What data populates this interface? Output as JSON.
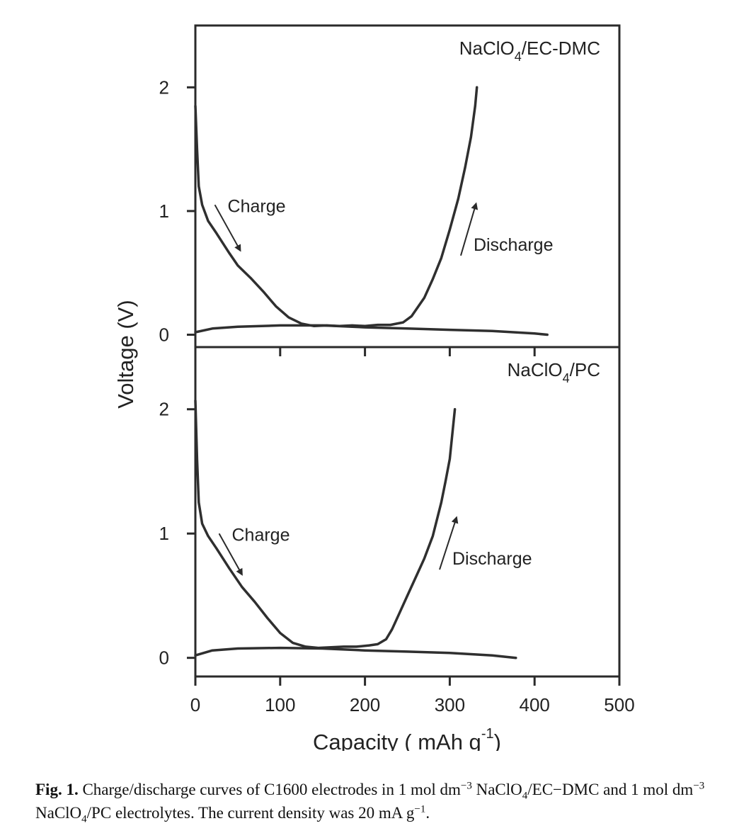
{
  "chart_data": {
    "type": "line",
    "xlabel": "Capacity ( mAh g",
    "xlabel_sup": "-1",
    "xlabel_end": ")",
    "ylabel": "Voltage (V)",
    "xlim": [
      0,
      500
    ],
    "xticks": [
      0,
      100,
      200,
      300,
      400,
      500
    ],
    "panels": [
      {
        "label_main": "NaClO",
        "label_sub": "4",
        "label_rest": "/EC-DMC",
        "ylim": [
          -0.1,
          2.5
        ],
        "yticks": [
          0,
          1,
          2
        ],
        "annotations": [
          {
            "text": "Charge",
            "x": 38,
            "y": 0.99
          },
          {
            "text": "Discharge",
            "x": 328,
            "y": 0.68
          }
        ],
        "arrows": [
          {
            "from": [
              23,
              1.05
            ],
            "to": [
              53,
              0.68
            ]
          },
          {
            "from": [
              313,
              0.64
            ],
            "to": [
              331,
              1.06
            ]
          }
        ],
        "series": [
          {
            "x": [
              0,
              2,
              4,
              8,
              15,
              25,
              40,
              50,
              65,
              80,
              95,
              110,
              125,
              140,
              155,
              170,
              185,
              200,
              215,
              230,
              245,
              255,
              262,
              270,
              280,
              290,
              300,
              310,
              318,
              325,
              330,
              332
            ],
            "y": [
              1.85,
              1.5,
              1.2,
              1.05,
              0.92,
              0.82,
              0.66,
              0.56,
              0.46,
              0.35,
              0.23,
              0.14,
              0.09,
              0.07,
              0.075,
              0.07,
              0.075,
              0.07,
              0.08,
              0.08,
              0.1,
              0.15,
              0.22,
              0.3,
              0.45,
              0.62,
              0.85,
              1.1,
              1.35,
              1.6,
              1.85,
              2.0
            ]
          },
          {
            "x": [
              0,
              20,
              50,
              100,
              150,
              200,
              250,
              300,
              350,
              400,
              415
            ],
            "y": [
              0.02,
              0.05,
              0.065,
              0.075,
              0.075,
              0.06,
              0.05,
              0.04,
              0.03,
              0.01,
              0.0
            ]
          }
        ]
      },
      {
        "label_main": "NaClO",
        "label_sub": "4",
        "label_rest": "/PC",
        "ylim": [
          -0.15,
          2.5
        ],
        "yticks": [
          0,
          1,
          2
        ],
        "annotations": [
          {
            "text": "Charge",
            "x": 43,
            "y": 0.94
          },
          {
            "text": "Discharge",
            "x": 303,
            "y": 0.75
          }
        ],
        "arrows": [
          {
            "from": [
              28,
              1.0
            ],
            "to": [
              55,
              0.67
            ]
          },
          {
            "from": [
              288,
              0.71
            ],
            "to": [
              308,
              1.13
            ]
          }
        ],
        "series": [
          {
            "x": [
              0,
              2,
              4,
              8,
              15,
              25,
              40,
              55,
              70,
              85,
              100,
              115,
              130,
              145,
              160,
              175,
              190,
              205,
              215,
              225,
              232,
              240,
              250,
              260,
              270,
              280,
              290,
              295,
              300,
              303,
              306
            ],
            "y": [
              2.07,
              1.6,
              1.25,
              1.08,
              0.98,
              0.88,
              0.72,
              0.57,
              0.45,
              0.32,
              0.2,
              0.12,
              0.09,
              0.08,
              0.085,
              0.09,
              0.09,
              0.1,
              0.11,
              0.15,
              0.23,
              0.35,
              0.5,
              0.65,
              0.8,
              0.98,
              1.25,
              1.42,
              1.6,
              1.8,
              2.0
            ]
          },
          {
            "x": [
              0,
              20,
              50,
              100,
              150,
              200,
              250,
              300,
              350,
              378
            ],
            "y": [
              0.02,
              0.06,
              0.075,
              0.08,
              0.075,
              0.06,
              0.05,
              0.04,
              0.02,
              0.0
            ]
          }
        ]
      }
    ]
  },
  "caption": {
    "label": "Fig. 1.",
    "t1": " Charge/discharge curves of C1600 electrodes in 1 mol dm",
    "s1": "−3",
    "t2": " NaClO",
    "s2": "4",
    "t3": "/EC−DMC and 1 mol dm",
    "s3": "−3",
    "t4": " NaClO",
    "s4": "4",
    "t5": "/PC electrolytes. The current density was 20 mA g",
    "s5": "−1",
    "t6": "."
  }
}
